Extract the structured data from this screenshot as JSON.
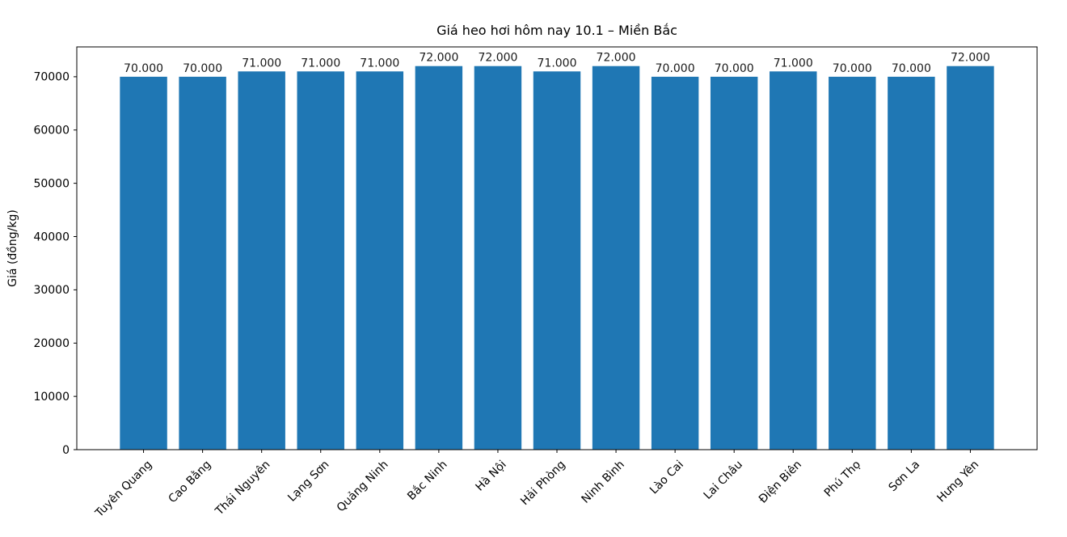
{
  "chart_data": {
    "type": "bar",
    "title": "Giá heo hơi hôm nay 10.1 – Miền Bắc",
    "xlabel": "",
    "ylabel": "Giá (đồng/kg)",
    "categories": [
      "Tuyên Quang",
      "Cao Bằng",
      "Thái Nguyên",
      "Lạng Sơn",
      "Quảng Ninh",
      "Bắc Ninh",
      "Hà Nội",
      "Hải Phòng",
      "Ninh Bình",
      "Lào Cai",
      "Lai Châu",
      "Điện Biên",
      "Phú Thọ",
      "Sơn La",
      "Hưng Yên"
    ],
    "values": [
      70000,
      70000,
      71000,
      71000,
      71000,
      72000,
      72000,
      71000,
      72000,
      70000,
      70000,
      71000,
      70000,
      70000,
      72000
    ],
    "value_labels": [
      "70.000",
      "70.000",
      "71.000",
      "71.000",
      "71.000",
      "72.000",
      "72.000",
      "71.000",
      "72.000",
      "70.000",
      "70.000",
      "71.000",
      "70.000",
      "70.000",
      "72.000"
    ],
    "yticks": [
      0,
      10000,
      20000,
      30000,
      40000,
      50000,
      60000,
      70000
    ],
    "ytick_labels": [
      "0",
      "10000",
      "20000",
      "30000",
      "40000",
      "50000",
      "60000",
      "70000"
    ],
    "ylim": [
      0,
      75600
    ],
    "bar_color": "#1f77b4",
    "legend": null,
    "grid": false
  }
}
